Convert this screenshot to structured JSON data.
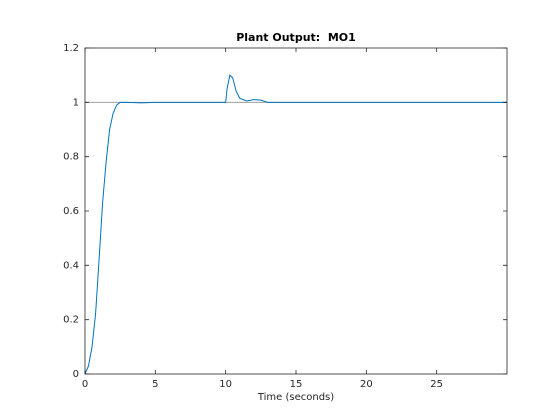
{
  "chart_data": {
    "type": "line",
    "title": "Plant Output:  MO1",
    "xlabel": "Time (seconds)",
    "xlim": [
      0,
      30
    ],
    "xticks": [
      0,
      5,
      10,
      15,
      20,
      25
    ],
    "ylim": [
      0,
      1.2
    ],
    "yticks": [
      0,
      0.2,
      0.4,
      0.6,
      0.8,
      1,
      1.2
    ],
    "series": [
      {
        "color": "#a0a0a0",
        "x": [
          0,
          30
        ],
        "values": [
          1,
          1
        ]
      },
      {
        "color": "#0072bd",
        "x": [
          0,
          0.25,
          0.5,
          0.75,
          1,
          1.25,
          1.5,
          1.75,
          2,
          2.25,
          2.5,
          3,
          4,
          5,
          10,
          10.1,
          10.3,
          10.5,
          10.75,
          11,
          11.5,
          12,
          12.5,
          13,
          30
        ],
        "values": [
          0,
          0.03,
          0.1,
          0.22,
          0.42,
          0.63,
          0.78,
          0.9,
          0.96,
          0.99,
          1,
          1,
          0.998,
          1,
          1,
          1.05,
          1.1,
          1.09,
          1.04,
          1.015,
          1.005,
          1.01,
          1.008,
          1,
          1
        ]
      }
    ]
  }
}
